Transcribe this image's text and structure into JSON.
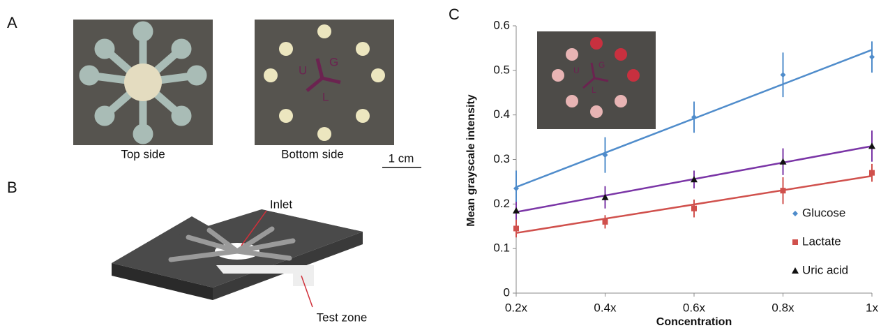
{
  "panels": {
    "a": {
      "label": "A",
      "top_caption": "Top side",
      "bottom_caption": "Bottom side",
      "scale_bar": "1 cm",
      "zone_letters": [
        "U",
        "G",
        "L"
      ]
    },
    "b": {
      "label": "B",
      "inlet": "Inlet",
      "test_zone": "Test zone"
    },
    "c": {
      "label": "C"
    }
  },
  "chart_data": {
    "type": "line",
    "x_label": "Concentration",
    "y_label": "Mean grayscale intensity",
    "categories": [
      "0.2x",
      "0.4x",
      "0.6x",
      "0.8x",
      "1x"
    ],
    "ylim": [
      0,
      0.6
    ],
    "yticks": [
      0,
      0.1,
      0.2,
      0.3,
      0.4,
      0.5,
      0.6
    ],
    "trendline": "linear",
    "legend": "lower-right",
    "series": [
      {
        "name": "Glucose",
        "color": "#4f8ccb",
        "line_color": "#4f8ccb",
        "marker": "diamond",
        "values": [
          0.235,
          0.31,
          0.395,
          0.49,
          0.53
        ],
        "errors": [
          0.04,
          0.04,
          0.035,
          0.05,
          0.035
        ]
      },
      {
        "name": "Lactate",
        "color": "#d0504c",
        "line_color": "#d0504c",
        "marker": "square",
        "values": [
          0.145,
          0.16,
          0.19,
          0.23,
          0.27
        ],
        "errors": [
          0.02,
          0.015,
          0.02,
          0.03,
          0.02
        ]
      },
      {
        "name": "Uric acid",
        "color": "#111111",
        "line_color": "#7a35a6",
        "marker": "triangle",
        "values": [
          0.185,
          0.215,
          0.255,
          0.295,
          0.33
        ],
        "errors": [
          0.02,
          0.025,
          0.02,
          0.03,
          0.035
        ]
      }
    ]
  }
}
